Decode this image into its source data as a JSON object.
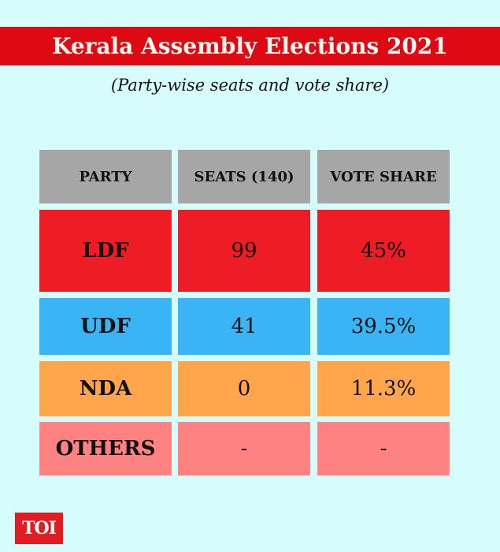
{
  "title": "Kerala Assembly Elections 2021",
  "subtitle": "(Party-wise seats and vote share)",
  "logo": "TOI",
  "chart_data": {
    "type": "table",
    "columns": [
      "PARTY",
      "SEATS (140)",
      "VOTE SHARE"
    ],
    "rows": [
      {
        "party": "LDF",
        "seats": "99",
        "vote_share": "45%",
        "color": "#ee1c24"
      },
      {
        "party": "UDF",
        "seats": "41",
        "vote_share": "39.5%",
        "color": "#3bb4f5"
      },
      {
        "party": "NDA",
        "seats": "0",
        "vote_share": "11.3%",
        "color": "#ffa64d"
      },
      {
        "party": "OTHERS",
        "seats": "-",
        "vote_share": "-",
        "color": "#ff8282"
      }
    ],
    "header_color": "#a6a6a6"
  }
}
